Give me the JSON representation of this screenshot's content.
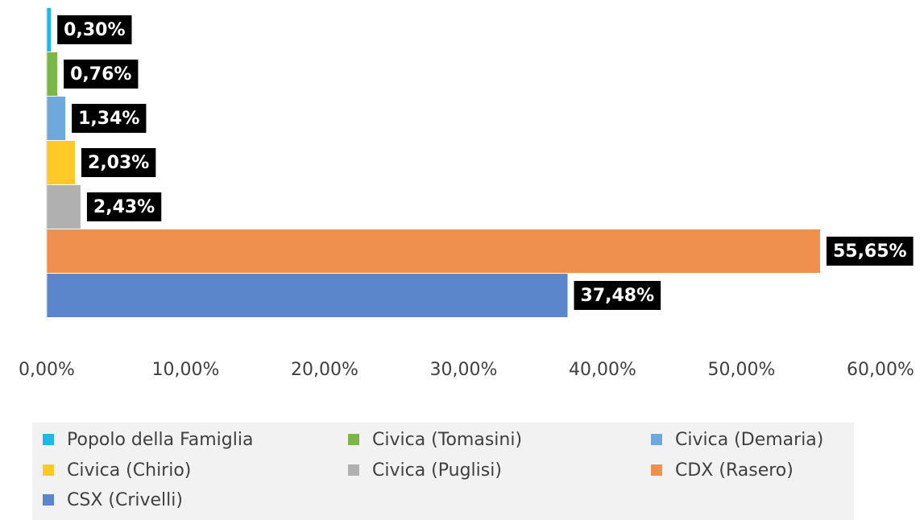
{
  "chart_data": {
    "type": "bar",
    "orientation": "horizontal",
    "categories": [
      null
    ],
    "series": [
      {
        "name": "Popolo della Famiglia",
        "color": "#1fb7ea",
        "values": [
          0.3
        ],
        "value_labels": [
          "0,30%"
        ]
      },
      {
        "name": "Civica (Tomasini)",
        "color": "#7ab648",
        "values": [
          0.76
        ],
        "value_labels": [
          "0,76%"
        ]
      },
      {
        "name": "Civica (Demaria)",
        "color": "#6fa8dc",
        "values": [
          1.34
        ],
        "value_labels": [
          "1,34%"
        ]
      },
      {
        "name": "Civica (Chirio)",
        "color": "#ffc928",
        "values": [
          2.03
        ],
        "value_labels": [
          "2,03%"
        ]
      },
      {
        "name": "Civica (Puglisi)",
        "color": "#b0b0b0",
        "values": [
          2.43
        ],
        "value_labels": [
          "2,43%"
        ]
      },
      {
        "name": "CDX (Rasero)",
        "color": "#f0904f",
        "values": [
          55.65
        ],
        "value_labels": [
          "55,65%"
        ]
      },
      {
        "name": "CSX (Crivelli)",
        "color": "#5b86cc",
        "values": [
          37.48
        ],
        "value_labels": [
          "37,48%"
        ]
      }
    ],
    "xlim": [
      0,
      60
    ],
    "xticks": [
      {
        "value": 0,
        "label": "0,00%"
      },
      {
        "value": 10,
        "label": "10,00%"
      },
      {
        "value": 20,
        "label": "20,00%"
      },
      {
        "value": 30,
        "label": "30,00%"
      },
      {
        "value": 40,
        "label": "40,00%"
      },
      {
        "value": 50,
        "label": "50,00%"
      },
      {
        "value": 60,
        "label": "60,00%"
      }
    ],
    "grid": false,
    "legend": "bottom"
  }
}
